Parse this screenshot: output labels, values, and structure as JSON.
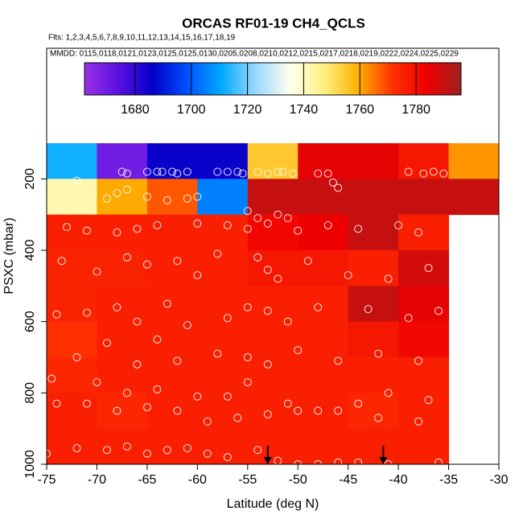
{
  "chart_data": {
    "type": "heatmap",
    "title": "ORCAS RF01-19 CH4_QCLS",
    "subtitle": "Flts: 1,2,3,4,5,6,7,8,9,10,11,12,13,14,15,16,17,18,19",
    "annotation": "MMDD: 0115,0118,0121,0123,0125,0125,0130,0205,0208,0210,0212,0215,0217,0218,0219,0222,0224,0225,0229",
    "xlabel": "Latitude (deg N)",
    "ylabel": "PSXC (mbar)",
    "xlim": [
      -75,
      -30
    ],
    "ylim": [
      1000,
      100
    ],
    "xticks": [
      -75,
      -70,
      -65,
      -60,
      -55,
      -50,
      -45,
      -40,
      -35,
      -30
    ],
    "yticks": [
      200,
      400,
      600,
      800,
      1000
    ],
    "xbins": [
      -75,
      -70,
      -65,
      -60,
      -55,
      -50,
      -45,
      -40,
      -35,
      -30
    ],
    "ybins": [
      100,
      200,
      300,
      400,
      500,
      600,
      700,
      800,
      900,
      1000
    ],
    "z": [
      [
        1712,
        1670,
        1685,
        1685,
        1755,
        1785,
        1785,
        1778,
        1762
      ],
      [
        1742,
        1760,
        1768,
        1705,
        1790,
        1790,
        1790,
        1790,
        1790
      ],
      [
        1776,
        1776,
        1776,
        1776,
        1782,
        1784,
        1790,
        1776,
        null
      ],
      [
        1775,
        1775,
        1776,
        1776,
        1778,
        1778,
        1776,
        1788,
        null
      ],
      [
        1775,
        1776,
        1776,
        1776,
        1776,
        1776,
        1790,
        1785,
        null
      ],
      [
        1772,
        1776,
        1776,
        1776,
        1776,
        1776,
        1778,
        1782,
        null
      ],
      [
        1774,
        1776,
        1776,
        1776,
        1776,
        1776,
        1776,
        1776,
        null
      ],
      [
        1776,
        1774,
        1776,
        1776,
        1776,
        1776,
        1774,
        1776,
        null
      ],
      [
        1776,
        1776,
        1776,
        1776,
        1776,
        1776,
        1776,
        1776,
        null
      ]
    ],
    "colorbar": {
      "range": [
        1662,
        1796
      ],
      "ticks": [
        1680,
        1700,
        1720,
        1740,
        1760,
        1780
      ],
      "colors": [
        "#9a32e6",
        "#5a10e0",
        "#0000c8",
        "#0050ff",
        "#00aaff",
        "#9ad8ff",
        "#fffff0",
        "#fff080",
        "#ffb000",
        "#ff3000",
        "#ee0000",
        "#a02020"
      ]
    },
    "points": {
      "color": "#ffffff",
      "x": [
        -67.5,
        -67,
        -65,
        -64,
        -63.5,
        -62.5,
        -62,
        -61,
        -58,
        -57,
        -56,
        -55.5,
        -54,
        -53,
        -52,
        -51.5,
        -50.5,
        -48,
        -47,
        -39,
        -37.5,
        -36.5,
        -35.5,
        -72,
        -46.5,
        -46,
        -68,
        -67,
        -69,
        -65,
        -63,
        -61,
        -60,
        -55,
        -54,
        -52,
        -51,
        -73,
        -71,
        -68,
        -66,
        -64,
        -60,
        -57,
        -55,
        -53,
        -50,
        -47,
        -44,
        -40,
        -38,
        -73.5,
        -70,
        -67,
        -65,
        -62,
        -60,
        -58,
        -54,
        -53,
        -52,
        -49,
        -45,
        -41,
        -37,
        -74,
        -71,
        -68,
        -66,
        -63,
        -61,
        -57,
        -55,
        -53,
        -51,
        -48,
        -43,
        -39,
        -36,
        -72,
        -69,
        -66,
        -64,
        -62,
        -58,
        -55,
        -53,
        -50,
        -46,
        -42,
        -38,
        -74.5,
        -70,
        -67,
        -64,
        -60,
        -57,
        -55,
        -51,
        -48,
        -44,
        -41,
        -37,
        -74,
        -71,
        -68,
        -65,
        -62,
        -59,
        -56,
        -53,
        -50,
        -46,
        -42,
        -38,
        -72,
        -69,
        -67,
        -65,
        -63,
        -61,
        -59,
        -57,
        -54,
        -52,
        -50,
        -48,
        -46,
        -44,
        -41,
        -36,
        -75
      ],
      "y": [
        180,
        185,
        180,
        180,
        180,
        180,
        185,
        180,
        180,
        180,
        180,
        185,
        180,
        185,
        180,
        180,
        185,
        185,
        185,
        180,
        185,
        180,
        185,
        205,
        210,
        225,
        240,
        230,
        255,
        250,
        260,
        255,
        250,
        290,
        310,
        300,
        310,
        335,
        345,
        350,
        340,
        330,
        325,
        330,
        340,
        325,
        345,
        330,
        340,
        330,
        350,
        430,
        460,
        420,
        440,
        430,
        470,
        410,
        420,
        455,
        480,
        430,
        470,
        480,
        450,
        580,
        575,
        560,
        600,
        550,
        610,
        590,
        560,
        570,
        600,
        560,
        565,
        590,
        570,
        700,
        660,
        720,
        650,
        710,
        690,
        700,
        720,
        680,
        710,
        690,
        710,
        760,
        770,
        800,
        790,
        810,
        810,
        770,
        830,
        850,
        830,
        800,
        820,
        830,
        830,
        850,
        840,
        850,
        880,
        870,
        860,
        850,
        850,
        870,
        880,
        955,
        960,
        950,
        970,
        960,
        955,
        970,
        980,
        960,
        990,
        1000,
        1000,
        995,
        995,
        1000,
        995,
        970
      ]
    },
    "arrows_x": [
      -53,
      -41.5
    ]
  }
}
